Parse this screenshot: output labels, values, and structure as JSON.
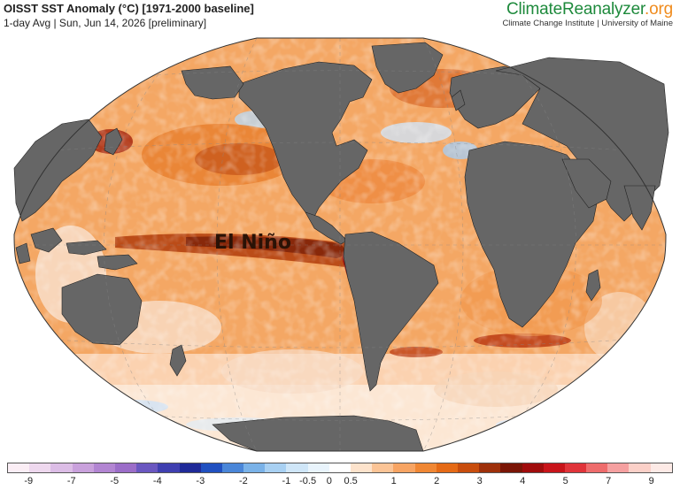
{
  "header": {
    "title": "OISST SST Anomaly (°C) [1971-2000 baseline]",
    "subtitle": "1-day Avg | Sun, Jun 14, 2026 [preliminary]"
  },
  "brand": {
    "name_main": "ClimateReanalyzer",
    "name_tld": ".org",
    "affiliation": "Climate Change Institute | University of Maine",
    "color_main": "#1e8a3c",
    "color_tld": "#f08c1e"
  },
  "map": {
    "projection": "Robinson",
    "annotation": "El Niño",
    "land_color": "#666666",
    "ocean_base_color": "#f5a25e"
  },
  "colorbar": {
    "colors": [
      "#fbeef5",
      "#eed8ee",
      "#dcbde6",
      "#c9a1dc",
      "#b285d2",
      "#9b6dc8",
      "#6a57c0",
      "#3f3fb0",
      "#1f2a98",
      "#2050c0",
      "#4a86d8",
      "#7ab2e8",
      "#a8d0f2",
      "#cfe6f8",
      "#e9f4fc",
      "#ffffff",
      "#fde3cc",
      "#fbc496",
      "#f7a463",
      "#f08734",
      "#e56a16",
      "#c84d0d",
      "#9e300a",
      "#7a1506",
      "#a00c0c",
      "#c8141a",
      "#e0343a",
      "#ee6c6c",
      "#f5a0a0",
      "#fbd0c8",
      "#fdeae6"
    ],
    "labels": [
      "-9",
      "-7",
      "-5",
      "-4",
      "-3",
      "-2",
      "-1",
      "-0.5",
      "0",
      "0.5",
      "1",
      "2",
      "3",
      "4",
      "5",
      "7",
      "9"
    ]
  }
}
